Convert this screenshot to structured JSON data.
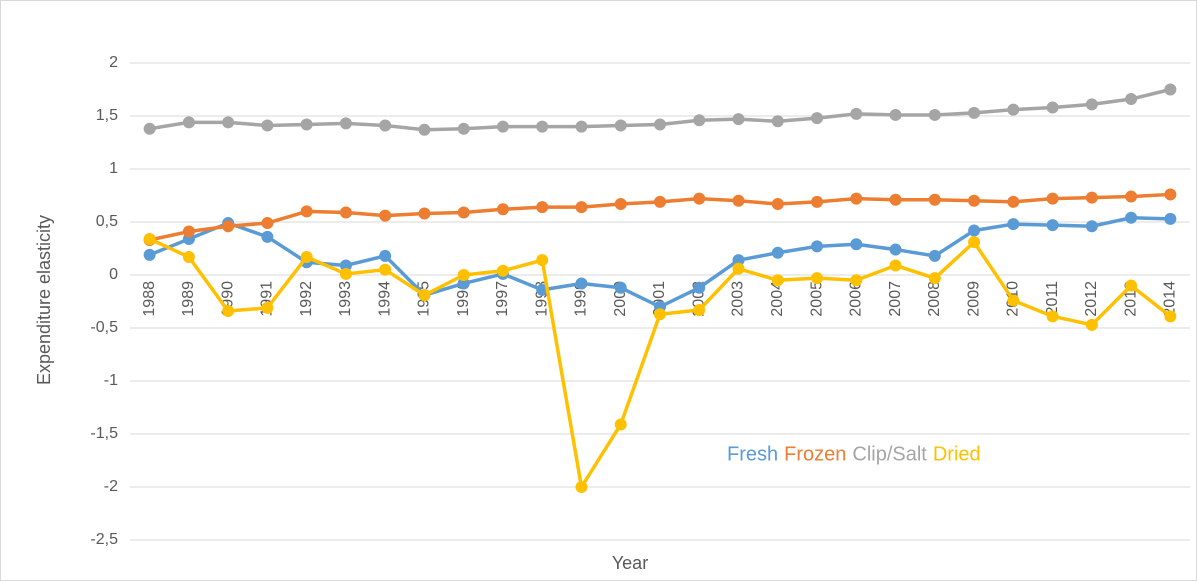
{
  "chart_data": {
    "type": "line",
    "xlabel": "Year",
    "ylabel": "Expenditure elasticity",
    "categories": [
      "1988",
      "1989",
      "1990",
      "1991",
      "1992",
      "1993",
      "1994",
      "1995",
      "1996",
      "1997",
      "1998",
      "1999",
      "2000",
      "2001",
      "2002",
      "2003",
      "2004",
      "2005",
      "2006",
      "2007",
      "2008",
      "2009",
      "2010",
      "2011",
      "2012",
      "2013",
      "2014"
    ],
    "series": [
      {
        "name": "Fresh",
        "color": "#5b9bd5",
        "values": [
          0.19,
          0.34,
          0.49,
          0.36,
          0.12,
          0.09,
          0.18,
          -0.19,
          -0.08,
          0.01,
          -0.14,
          -0.08,
          -0.12,
          -0.3,
          -0.12,
          0.14,
          0.21,
          0.27,
          0.29,
          0.24,
          0.18,
          0.42,
          0.48,
          0.47,
          0.46,
          0.54,
          0.53
        ]
      },
      {
        "name": "Frozen",
        "color": "#ed7d31",
        "values": [
          0.33,
          0.41,
          0.46,
          0.49,
          0.6,
          0.59,
          0.56,
          0.58,
          0.59,
          0.62,
          0.64,
          0.64,
          0.67,
          0.69,
          0.72,
          0.7,
          0.67,
          0.69,
          0.72,
          0.71,
          0.71,
          0.7,
          0.69,
          0.72,
          0.73,
          0.74,
          0.76
        ]
      },
      {
        "name": "Clip/Salt",
        "color": "#a5a5a5",
        "values": [
          1.38,
          1.44,
          1.44,
          1.41,
          1.42,
          1.43,
          1.41,
          1.37,
          1.38,
          1.4,
          1.4,
          1.4,
          1.41,
          1.42,
          1.46,
          1.47,
          1.45,
          1.48,
          1.52,
          1.51,
          1.51,
          1.53,
          1.56,
          1.58,
          1.61,
          1.66,
          1.75
        ]
      },
      {
        "name": "Dried",
        "color": "#ffc000",
        "values": [
          0.34,
          0.17,
          -0.34,
          -0.31,
          0.17,
          0.01,
          0.05,
          -0.19,
          0.0,
          0.04,
          0.14,
          -2.0,
          -1.41,
          -0.37,
          -0.33,
          0.06,
          -0.05,
          -0.03,
          -0.05,
          0.09,
          -0.03,
          0.31,
          -0.24,
          -0.39,
          -0.47,
          -0.1,
          -0.39
        ]
      }
    ],
    "ylim": [
      -2.5,
      2
    ],
    "yticks": [
      {
        "value": -2.5,
        "label": "-2,5"
      },
      -2,
      {
        "value": -1.5,
        "label": "-1,5"
      },
      -1,
      {
        "value": -0.5,
        "label": "-0,5"
      },
      0,
      {
        "value": 0.5,
        "label": "0,5"
      },
      1,
      {
        "value": 1.5,
        "label": "1,5"
      },
      2
    ],
    "grid": true,
    "legend": "lower right"
  }
}
